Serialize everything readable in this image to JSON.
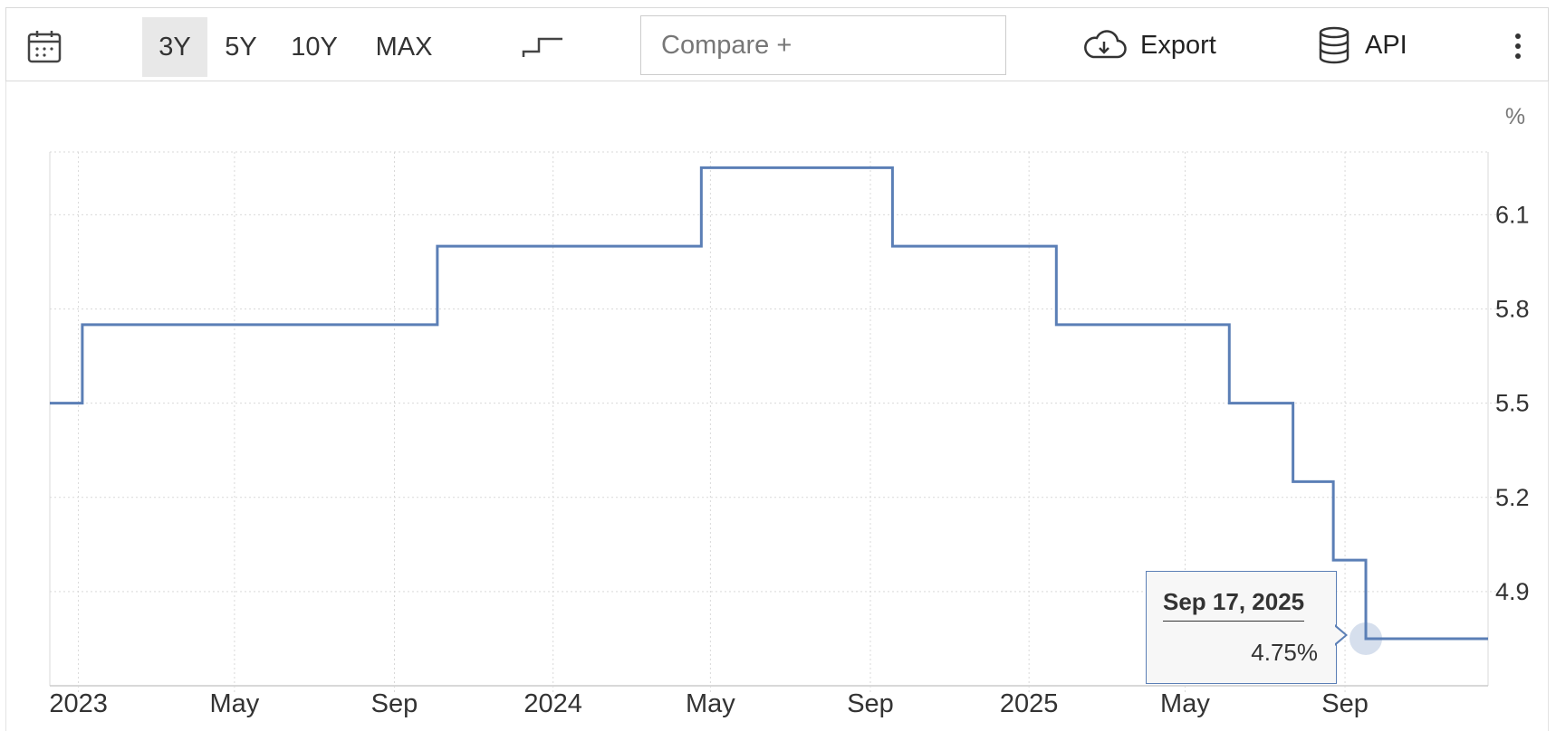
{
  "toolbar": {
    "ranges": [
      "3Y",
      "5Y",
      "10Y",
      "MAX"
    ],
    "active_range": "3Y",
    "compare_placeholder": "Compare +",
    "export_label": "Export",
    "api_label": "API",
    "icons": {
      "calendar": "calendar-icon",
      "step": "step-chart-icon",
      "export": "cloud-download-icon",
      "api": "database-icon",
      "more": "more-vertical-icon"
    }
  },
  "colors": {
    "line": "#5b7fb6",
    "grid": "#d9d9d9",
    "active_range_bg": "#e8e8e8"
  },
  "tooltip": {
    "date": "Sep 17, 2025",
    "value": "4.75%"
  },
  "chart_data": {
    "type": "line",
    "style": "step",
    "unit_label": "%",
    "x_ticks": [
      "2023",
      "May",
      "Sep",
      "2024",
      "May",
      "Sep",
      "2025",
      "May",
      "Sep"
    ],
    "x_tick_dates": [
      "2023-01-01",
      "2023-05-01",
      "2023-09-01",
      "2024-01-01",
      "2024-05-01",
      "2024-09-01",
      "2025-01-01",
      "2025-05-01",
      "2025-09-01"
    ],
    "xlim": [
      "2022-12-10",
      "2025-12-20"
    ],
    "y_ticks": [
      4.9,
      5.2,
      5.5,
      5.8,
      6.1
    ],
    "y_tick_labels": [
      "4.9",
      "5.2",
      "5.5",
      "5.8",
      "6.1"
    ],
    "ylim": [
      4.6,
      6.3
    ],
    "grid": true,
    "series": [
      {
        "points": [
          {
            "date": "2022-12-10",
            "value": 5.5
          },
          {
            "date": "2023-01-04",
            "value": 5.75
          },
          {
            "date": "2023-10-04",
            "value": 6.0
          },
          {
            "date": "2024-04-24",
            "value": 6.25
          },
          {
            "date": "2024-09-18",
            "value": 6.0
          },
          {
            "date": "2025-01-22",
            "value": 5.75
          },
          {
            "date": "2025-06-04",
            "value": 5.5
          },
          {
            "date": "2025-07-23",
            "value": 5.25
          },
          {
            "date": "2025-08-23",
            "value": 5.0
          },
          {
            "date": "2025-09-17",
            "value": 4.75
          },
          {
            "date": "2025-12-20",
            "value": 4.75
          }
        ]
      }
    ],
    "highlight": {
      "date": "2025-09-17",
      "value": 4.75
    }
  }
}
